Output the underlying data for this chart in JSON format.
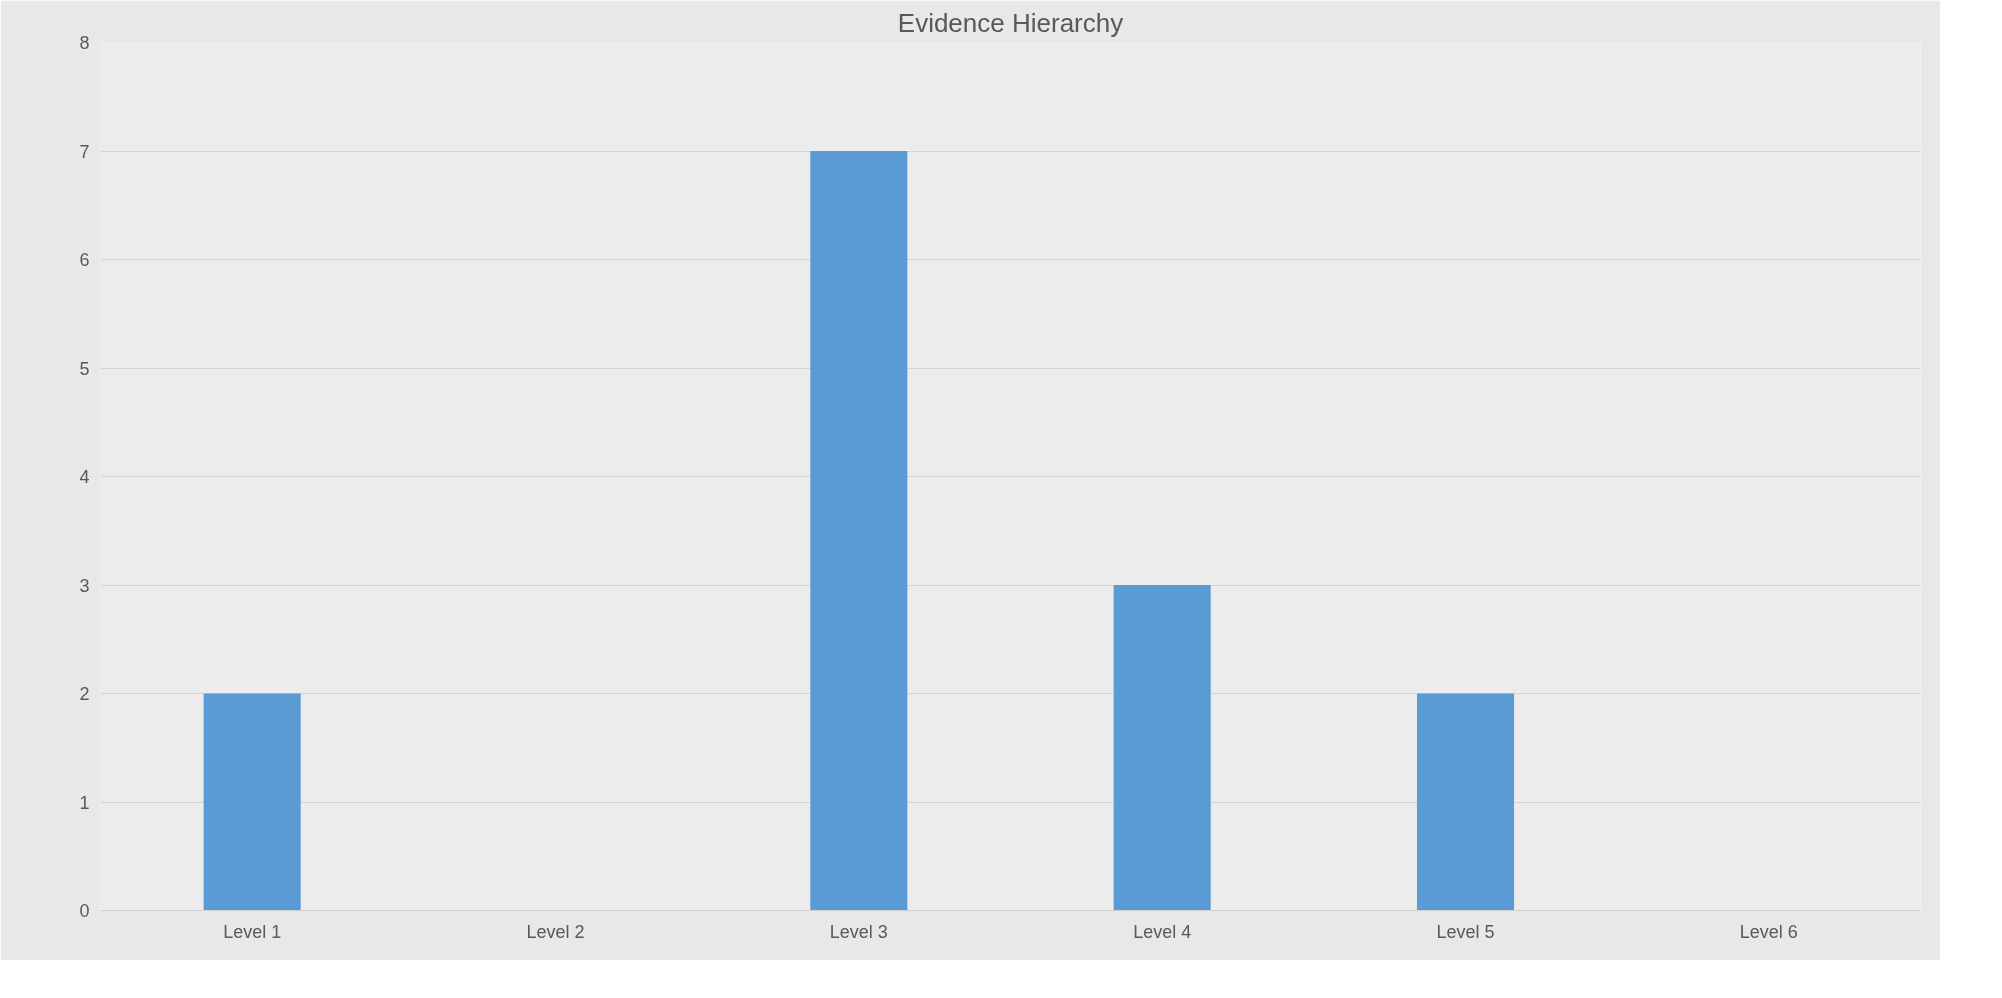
{
  "chart_data": {
    "type": "bar",
    "title": "Evidence Hierarchy",
    "categories": [
      "Level 1",
      "Level 2",
      "Level 3",
      "Level 4",
      "Level 5",
      "Level 6"
    ],
    "values": [
      2,
      0,
      7,
      3,
      2,
      0
    ],
    "color": "#5b9bd5",
    "ylim": [
      0,
      8
    ],
    "yticks": [
      0,
      1,
      2,
      3,
      4,
      5,
      6,
      7,
      8
    ],
    "grid": "y"
  }
}
